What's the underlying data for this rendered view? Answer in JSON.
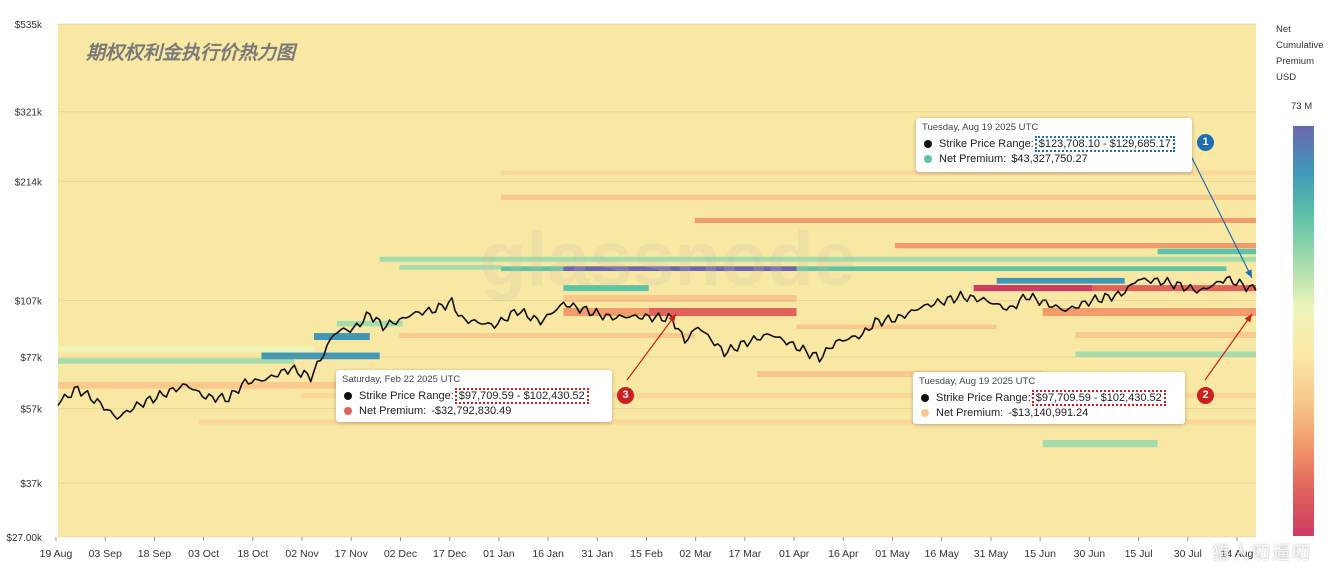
{
  "chart_data": {
    "type": "heatmap",
    "title": "期权权利金执行价热力图",
    "watermark": "glassnode",
    "y_scale": "log",
    "ylim": [
      27000,
      535000
    ],
    "y_ticks": [
      "$535k",
      "$321k",
      "$214k",
      "$107k",
      "$77k",
      "$57k",
      "$37k",
      "$27.00k"
    ],
    "y_tick_values": [
      535000,
      321000,
      214000,
      107000,
      77000,
      57000,
      37000,
      27000
    ],
    "x_tick_labels": [
      "19 Aug",
      "03 Sep",
      "18 Sep",
      "03 Oct",
      "18 Oct",
      "02 Nov",
      "17 Nov",
      "02 Dec",
      "17 Dec",
      "01 Jan",
      "16 Jan",
      "31 Jan",
      "15 Feb",
      "02 Mar",
      "17 Mar",
      "01 Apr",
      "16 Apr",
      "01 May",
      "16 May",
      "31 May",
      "15 Jun",
      "30 Jun",
      "15 Jul",
      "30 Jul",
      "14 Aug"
    ],
    "xlim": [
      "2024-08-19",
      "2025-08-19"
    ],
    "colorbar": {
      "title_lines": [
        "Net",
        "Cumulative",
        "Premium",
        "USD"
      ],
      "max_label": "73 M",
      "stops": [
        "#6c67b0",
        "#3f97b8",
        "#5fc3a8",
        "#a6dcab",
        "#eef4ba",
        "#fbe9a6",
        "#f8c98b",
        "#f29a6a",
        "#e0625b",
        "#cc3c62"
      ]
    },
    "price_series": [
      {
        "date": "2024-08-19",
        "price": 59000
      },
      {
        "date": "2024-08-25",
        "price": 64000
      },
      {
        "date": "2024-09-01",
        "price": 58500
      },
      {
        "date": "2024-09-06",
        "price": 54000
      },
      {
        "date": "2024-09-12",
        "price": 58000
      },
      {
        "date": "2024-09-18",
        "price": 61000
      },
      {
        "date": "2024-09-27",
        "price": 65500
      },
      {
        "date": "2024-10-03",
        "price": 61000
      },
      {
        "date": "2024-10-10",
        "price": 60500
      },
      {
        "date": "2024-10-15",
        "price": 66500
      },
      {
        "date": "2024-10-21",
        "price": 67500
      },
      {
        "date": "2024-10-29",
        "price": 72000
      },
      {
        "date": "2024-11-04",
        "price": 68500
      },
      {
        "date": "2024-11-07",
        "price": 76000
      },
      {
        "date": "2024-11-11",
        "price": 88000
      },
      {
        "date": "2024-11-13",
        "price": 90000
      },
      {
        "date": "2024-11-17",
        "price": 90500
      },
      {
        "date": "2024-11-22",
        "price": 99000
      },
      {
        "date": "2024-11-26",
        "price": 92000
      },
      {
        "date": "2024-12-02",
        "price": 96000
      },
      {
        "date": "2024-12-05",
        "price": 99000
      },
      {
        "date": "2024-12-11",
        "price": 101000
      },
      {
        "date": "2024-12-17",
        "price": 106000
      },
      {
        "date": "2024-12-20",
        "price": 96000
      },
      {
        "date": "2024-12-30",
        "price": 92500
      },
      {
        "date": "2025-01-06",
        "price": 101000
      },
      {
        "date": "2025-01-13",
        "price": 94500
      },
      {
        "date": "2025-01-20",
        "price": 105000
      },
      {
        "date": "2025-01-27",
        "price": 101000
      },
      {
        "date": "2025-02-03",
        "price": 97000
      },
      {
        "date": "2025-02-10",
        "price": 97500
      },
      {
        "date": "2025-02-22",
        "price": 96500
      },
      {
        "date": "2025-02-26",
        "price": 84500
      },
      {
        "date": "2025-03-02",
        "price": 92000
      },
      {
        "date": "2025-03-10",
        "price": 79000
      },
      {
        "date": "2025-03-17",
        "price": 84000
      },
      {
        "date": "2025-03-24",
        "price": 88000
      },
      {
        "date": "2025-03-31",
        "price": 82500
      },
      {
        "date": "2025-04-08",
        "price": 76500
      },
      {
        "date": "2025-04-13",
        "price": 84000
      },
      {
        "date": "2025-04-21",
        "price": 87500
      },
      {
        "date": "2025-04-25",
        "price": 94500
      },
      {
        "date": "2025-05-02",
        "price": 96500
      },
      {
        "date": "2025-05-09",
        "price": 103000
      },
      {
        "date": "2025-05-21",
        "price": 109500
      },
      {
        "date": "2025-05-28",
        "price": 107500
      },
      {
        "date": "2025-06-05",
        "price": 101500
      },
      {
        "date": "2025-06-10",
        "price": 110000
      },
      {
        "date": "2025-06-17",
        "price": 104500
      },
      {
        "date": "2025-06-22",
        "price": 101000
      },
      {
        "date": "2025-06-30",
        "price": 107000
      },
      {
        "date": "2025-07-09",
        "price": 111000
      },
      {
        "date": "2025-07-14",
        "price": 121000
      },
      {
        "date": "2025-07-22",
        "price": 119500
      },
      {
        "date": "2025-08-02",
        "price": 113000
      },
      {
        "date": "2025-08-10",
        "price": 121500
      },
      {
        "date": "2025-08-14",
        "price": 118000
      },
      {
        "date": "2025-08-19",
        "price": 113500
      }
    ],
    "heat_bands": [
      {
        "start": "2024-08-19",
        "end": "2025-08-19",
        "low": 27000,
        "high": 535000,
        "color": "#f9e8a4"
      },
      {
        "start": "2024-08-19",
        "end": "2024-10-30",
        "low": 74000,
        "high": 76500,
        "color": "#a6dcab"
      },
      {
        "start": "2024-08-19",
        "end": "2024-11-20",
        "low": 64000,
        "high": 66500,
        "color": "#f8c98b"
      },
      {
        "start": "2024-08-19",
        "end": "2024-11-05",
        "low": 79500,
        "high": 82000,
        "color": "#eef4ba"
      },
      {
        "start": "2024-10-20",
        "end": "2024-11-25",
        "low": 76000,
        "high": 79000,
        "color": "#3f97b8"
      },
      {
        "start": "2024-11-05",
        "end": "2024-11-22",
        "low": 85000,
        "high": 88500,
        "color": "#3f97b8"
      },
      {
        "start": "2024-11-12",
        "end": "2024-12-02",
        "low": 92000,
        "high": 95000,
        "color": "#a6dcab"
      },
      {
        "start": "2024-12-01",
        "end": "2025-01-01",
        "low": 128000,
        "high": 131500,
        "color": "#a6dcab"
      },
      {
        "start": "2024-11-25",
        "end": "2025-08-19",
        "low": 134000,
        "high": 138000,
        "color": "#a6dcab"
      },
      {
        "start": "2025-01-01",
        "end": "2025-08-10",
        "low": 127000,
        "high": 130500,
        "color": "#5fc3a8"
      },
      {
        "start": "2025-01-20",
        "end": "2025-04-01",
        "low": 127000,
        "high": 130500,
        "color": "#6c67b0"
      },
      {
        "start": "2025-01-01",
        "end": "2025-08-19",
        "low": 192000,
        "high": 198000,
        "color": "#f8c98b"
      },
      {
        "start": "2025-01-01",
        "end": "2025-08-19",
        "low": 222000,
        "high": 228000,
        "color": "#fbd898"
      },
      {
        "start": "2025-03-01",
        "end": "2025-08-19",
        "low": 168000,
        "high": 173000,
        "color": "#f29a6a"
      },
      {
        "start": "2025-05-01",
        "end": "2025-08-19",
        "low": 145000,
        "high": 149500,
        "color": "#f29a6a"
      },
      {
        "start": "2025-02-15",
        "end": "2025-04-01",
        "low": 97700,
        "high": 102400,
        "color": "#e0625b"
      },
      {
        "start": "2025-01-20",
        "end": "2025-02-15",
        "low": 97700,
        "high": 102400,
        "color": "#f29a6a"
      },
      {
        "start": "2025-01-20",
        "end": "2025-04-01",
        "low": 106000,
        "high": 110500,
        "color": "#f8c98b"
      },
      {
        "start": "2025-01-20",
        "end": "2025-02-15",
        "low": 113000,
        "high": 117000,
        "color": "#5fc3a8"
      },
      {
        "start": "2025-05-25",
        "end": "2025-08-19",
        "low": 113000,
        "high": 117000,
        "color": "#e0625b"
      },
      {
        "start": "2025-05-25",
        "end": "2025-06-30",
        "low": 113000,
        "high": 117000,
        "color": "#cc3c62"
      },
      {
        "start": "2025-06-01",
        "end": "2025-07-10",
        "low": 118000,
        "high": 122000,
        "color": "#3f97b8"
      },
      {
        "start": "2025-07-20",
        "end": "2025-08-19",
        "low": 140000,
        "high": 144500,
        "color": "#5fc3a8"
      },
      {
        "start": "2025-06-15",
        "end": "2025-08-19",
        "low": 97700,
        "high": 102400,
        "color": "#f29a6a"
      },
      {
        "start": "2025-06-25",
        "end": "2025-08-19",
        "low": 77000,
        "high": 79500,
        "color": "#a6dcab"
      },
      {
        "start": "2025-06-25",
        "end": "2025-08-19",
        "low": 86000,
        "high": 89000,
        "color": "#f8c98b"
      },
      {
        "start": "2025-03-20",
        "end": "2025-06-15",
        "low": 68500,
        "high": 71000,
        "color": "#f8c98b"
      },
      {
        "start": "2025-06-15",
        "end": "2025-07-20",
        "low": 45500,
        "high": 47500,
        "color": "#a6dcab"
      },
      {
        "start": "2024-11-01",
        "end": "2025-08-19",
        "low": 60500,
        "high": 62500,
        "color": "#fbd898"
      },
      {
        "start": "2024-10-01",
        "end": "2025-08-19",
        "low": 52000,
        "high": 53500,
        "color": "#fbd898"
      },
      {
        "start": "2024-12-01",
        "end": "2025-03-01",
        "low": 86000,
        "high": 88500,
        "color": "#f8c98b"
      },
      {
        "start": "2025-04-01",
        "end": "2025-06-01",
        "low": 90500,
        "high": 93000,
        "color": "#f8c98b"
      }
    ]
  },
  "tooltips": [
    {
      "number": "1",
      "date": "Tuesday, Aug 19 2025 UTC",
      "range_label": "Strike Price Range:",
      "range_value": "$123,708.10 - $129,685.17",
      "premium_label": "Net Premium:",
      "premium_value": "$43,327,750.27",
      "dot_color": "#5fc3a8",
      "box_color": "#1e6fb0"
    },
    {
      "number": "2",
      "date": "Tuesday, Aug 19 2025 UTC",
      "range_label": "Strike Price Range:",
      "range_value": "$97,709.59 - $102,430.52",
      "premium_label": "Net Premium:",
      "premium_value": "-$13,140,991.24",
      "dot_color": "#f8c98b",
      "box_color": "#cc1f1f"
    },
    {
      "number": "3",
      "date": "Saturday, Feb 22 2025 UTC",
      "range_label": "Strike Price Range:",
      "range_value": "$97,709.59 - $102,430.52",
      "premium_label": "Net Premium:",
      "premium_value": "-$32,792,830.49",
      "dot_color": "#e0625b",
      "box_color": "#cc1f1f"
    }
  ],
  "watermark_corner": "猎人叨逼叨"
}
